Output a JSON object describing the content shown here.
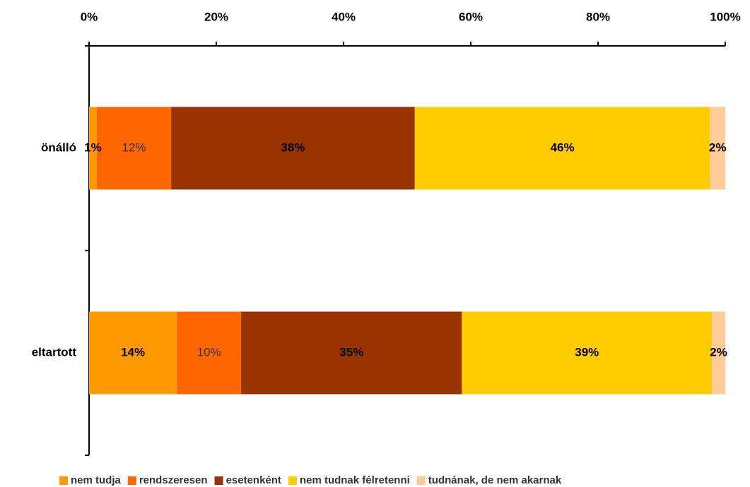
{
  "chart_data": {
    "type": "stacked-barh",
    "categories": [
      "önálló",
      "eltartott"
    ],
    "xlim": [
      0,
      100
    ],
    "xticks": [
      {
        "value": 0,
        "label": "0%"
      },
      {
        "value": 20,
        "label": "20%"
      },
      {
        "value": 40,
        "label": "40%"
      },
      {
        "value": 60,
        "label": "60%"
      },
      {
        "value": 80,
        "label": "80%"
      },
      {
        "value": 100,
        "label": "100%"
      }
    ],
    "series": [
      {
        "name": "nem tudja",
        "color": "#ff9900",
        "values": [
          1.2,
          13.8
        ],
        "value_labels": [
          "1%",
          "14%"
        ]
      },
      {
        "name": "rendszeresen",
        "color": "#ff6600",
        "values": [
          11.7,
          10.1
        ],
        "value_labels": [
          "12%",
          "10%"
        ]
      },
      {
        "name": "esetenként",
        "color": "#993300",
        "values": [
          38.3,
          34.7
        ],
        "value_labels": [
          "38%",
          "35%"
        ]
      },
      {
        "name": "nem tudnak félretenni",
        "color": "#ffcc00",
        "values": [
          46.4,
          39.3
        ],
        "value_labels": [
          "46%",
          "39%"
        ]
      },
      {
        "name": "tudnának, de nem akarnak",
        "color": "#ffcc99",
        "values": [
          2.4,
          2.1
        ],
        "value_labels": [
          "2%",
          "2%"
        ]
      }
    ]
  }
}
